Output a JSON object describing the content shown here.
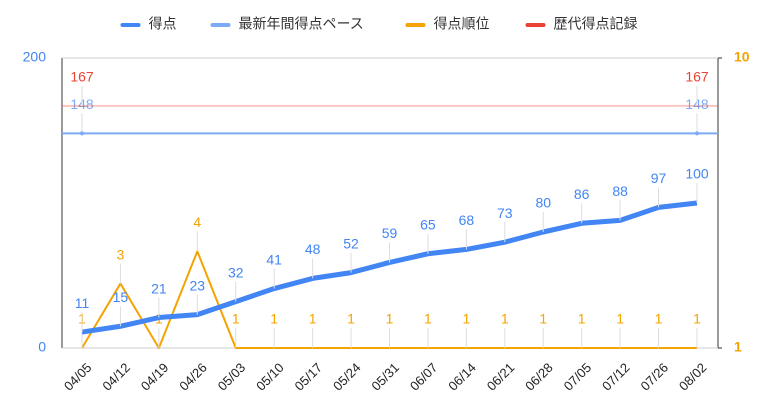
{
  "chart_data": {
    "type": "line",
    "categories": [
      "04/05",
      "04/12",
      "04/19",
      "04/26",
      "05/03",
      "05/10",
      "05/17",
      "05/24",
      "05/31",
      "06/07",
      "06/14",
      "06/21",
      "06/28",
      "07/05",
      "07/12",
      "07/26",
      "08/02"
    ],
    "series": [
      {
        "name": "得点",
        "color": "#4285f4",
        "values": [
          11,
          15,
          21,
          23,
          32,
          41,
          48,
          52,
          59,
          65,
          68,
          73,
          80,
          86,
          88,
          97,
          100
        ]
      },
      {
        "name": "最新年間得点ペース",
        "color": "#7baaf7",
        "values": [
          148,
          148,
          148,
          148,
          148,
          148,
          148,
          148,
          148,
          148,
          148,
          148,
          148,
          148,
          148,
          148,
          148
        ]
      },
      {
        "name": "得点順位",
        "color": "#f4a300",
        "axis": "y2",
        "values": [
          1,
          3,
          1,
          4,
          1,
          1,
          1,
          1,
          1,
          1,
          1,
          1,
          1,
          1,
          1,
          1,
          1
        ]
      },
      {
        "name": "歴代得点記録",
        "color": "#ea4335",
        "values": [
          167,
          167,
          167,
          167,
          167,
          167,
          167,
          167,
          167,
          167,
          167,
          167,
          167,
          167,
          167,
          167,
          167
        ]
      }
    ],
    "ylim": [
      0,
      200
    ],
    "yticks": [
      0,
      200
    ],
    "y2lim": [
      1,
      10
    ],
    "y2ticks": [
      1,
      10
    ],
    "legend": "top"
  }
}
